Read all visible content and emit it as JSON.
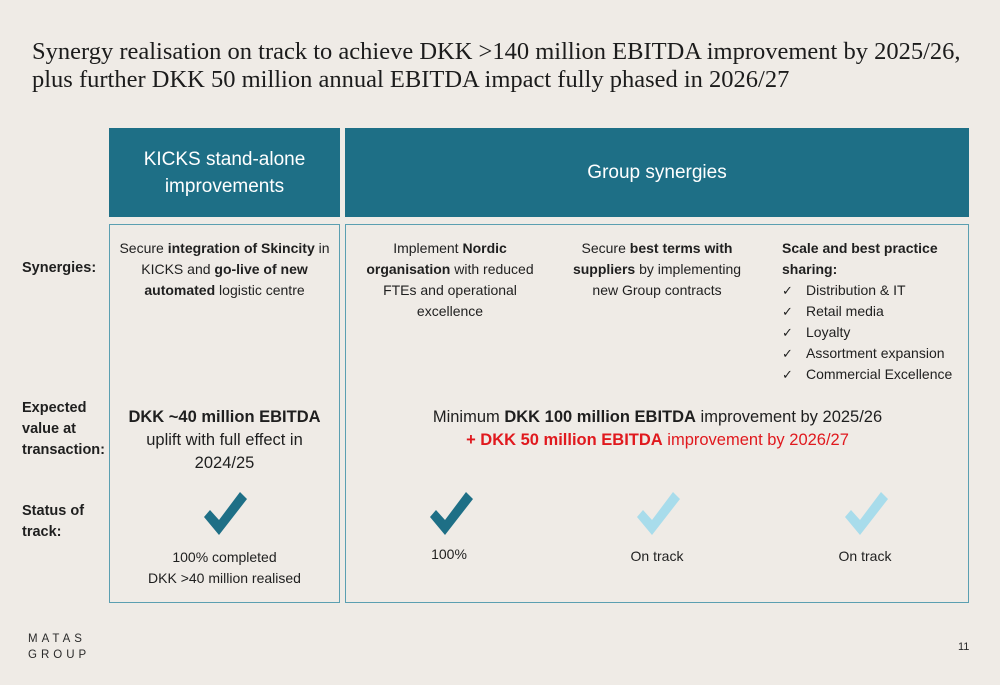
{
  "title": "Synergy realisation on track to achieve DKK >140 million EBITDA improvement by 2025/26, plus further DKK 50 million annual EBITDA impact fully phased in 2026/27",
  "headers": {
    "kicks": "KICKS stand-alone improvements",
    "group": "Group synergies"
  },
  "row_labels": {
    "synergies": "Synergies:",
    "expected_value": "Expected value at transaction:",
    "status": "Status of track:"
  },
  "synergies": {
    "kicks": {
      "p1": "Secure ",
      "b1": "integration of Skincity",
      "p2": " in KICKS and ",
      "b2": "go-live of new automated",
      "p3": " logistic centre"
    },
    "nordic": {
      "p1": "Implement ",
      "b1": "Nordic organisation",
      "p2": " with reduced FTEs and operational excellence"
    },
    "suppliers": {
      "p1": "Secure ",
      "b1": "best terms with suppliers",
      "p2": " by implementing new Group contracts"
    },
    "scale": {
      "heading": "Scale and best practice sharing:",
      "check_mark": "✓",
      "items": [
        "Distribution & IT",
        "Retail media",
        "Loyalty",
        "Assortment expansion",
        "Commercial Excellence"
      ]
    }
  },
  "expected_value": {
    "kicks_bold": "DKK ~40 million EBITDA",
    "kicks_rest": "uplift with full effect in 2024/25",
    "group_line1_pre": "Minimum ",
    "group_line1_bold": "DKK 100 million EBITDA",
    "group_line1_post": " improvement by 2025/26",
    "group_line2_bold": "+ DKK 50 million EBITDA",
    "group_line2_post": " improvement by 2026/27"
  },
  "status": {
    "kicks_line1": "100% completed",
    "kicks_line2": "DKK >40 million realised",
    "nordic": "100%",
    "suppliers": "On track",
    "scale": "On track"
  },
  "colors": {
    "header_bg": "#1e6f86",
    "check_done": "#1e6f86",
    "check_on_track": "#a8dceb",
    "accent_red": "#e0191e",
    "panel_border": "#5b9fb1",
    "page_bg": "#efebe6"
  },
  "logo": {
    "line1": "MATAS",
    "line2": "GROUP"
  },
  "page_number": "11"
}
